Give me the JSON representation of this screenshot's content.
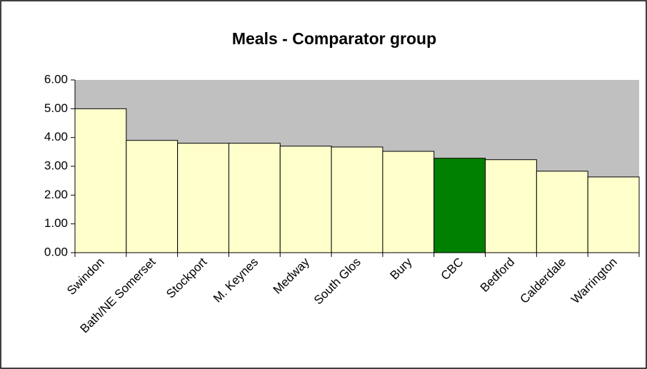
{
  "chart_data": {
    "type": "bar",
    "title": "Meals - Comparator group",
    "categories": [
      "Swindon",
      "Bath/NE Somerset",
      "Stockport",
      "M. Keynes",
      "Medway",
      "South Glos",
      "Bury",
      "CBC",
      "Bedford",
      "Calderdale",
      "Warrington"
    ],
    "values": [
      5.0,
      3.9,
      3.8,
      3.8,
      3.7,
      3.67,
      3.52,
      3.28,
      3.23,
      2.83,
      2.63
    ],
    "colors": [
      "#ffffcc",
      "#ffffcc",
      "#ffffcc",
      "#ffffcc",
      "#ffffcc",
      "#ffffcc",
      "#ffffcc",
      "#008000",
      "#ffffcc",
      "#ffffcc",
      "#ffffcc"
    ],
    "plot_background": "#c0c0c0",
    "ylim": [
      0,
      6
    ],
    "yticks": [
      {
        "value": 0,
        "label": "0.00"
      },
      {
        "value": 1,
        "label": "1.00"
      },
      {
        "value": 2,
        "label": "2.00"
      },
      {
        "value": 3,
        "label": "3.00"
      },
      {
        "value": 4,
        "label": "4.00"
      },
      {
        "value": 5,
        "label": "5.00"
      },
      {
        "value": 6,
        "label": "6.00"
      }
    ]
  }
}
